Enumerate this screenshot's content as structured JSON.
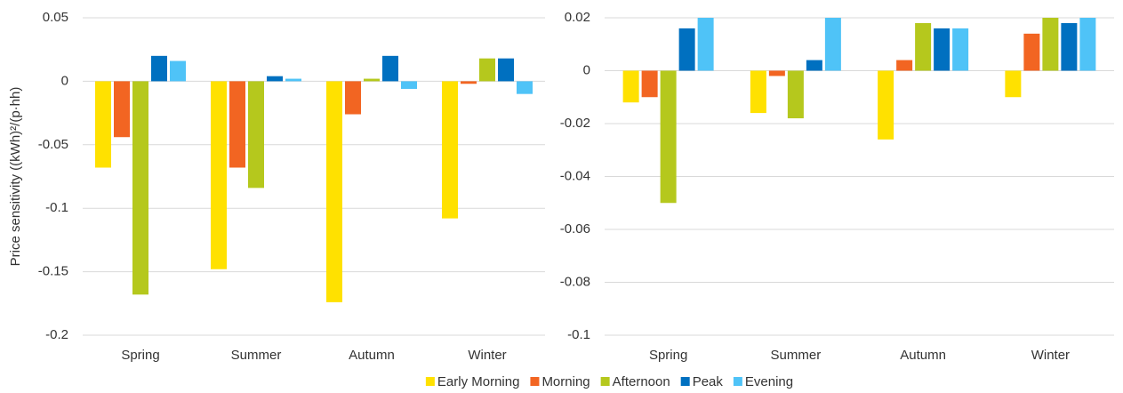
{
  "chart_data": [
    {
      "type": "bar",
      "y_label": "Price sensitivity ((kWh)²/(p·hh)",
      "categories": [
        "Spring",
        "Summer",
        "Autumn",
        "Winter"
      ],
      "series": [
        {
          "name": "Early Morning",
          "color": "#ffe100",
          "values": [
            -0.068,
            -0.148,
            -0.174,
            -0.108
          ]
        },
        {
          "name": "Morning",
          "color": "#f26522",
          "values": [
            -0.044,
            -0.068,
            -0.026,
            -0.002
          ]
        },
        {
          "name": "Afternoon",
          "color": "#b5c81d",
          "values": [
            -0.168,
            -0.084,
            0.002,
            0.018
          ]
        },
        {
          "name": "Peak",
          "color": "#0070c0",
          "values": [
            0.02,
            0.004,
            0.02,
            0.018
          ]
        },
        {
          "name": "Evening",
          "color": "#4fc3f7",
          "values": [
            0.016,
            0.002,
            -0.006,
            -0.01
          ]
        }
      ],
      "ylim": [
        -0.2,
        0.05
      ],
      "yticks": [
        -0.2,
        -0.15,
        -0.1,
        -0.05,
        0,
        0.05
      ],
      "grid": true,
      "legend": "bottom"
    },
    {
      "type": "bar",
      "categories": [
        "Spring",
        "Summer",
        "Autumn",
        "Winter"
      ],
      "series": [
        {
          "color": "#ffe100",
          "values": [
            -0.012,
            -0.016,
            -0.026,
            -0.01
          ]
        },
        {
          "color": "#f26522",
          "values": [
            -0.01,
            -0.002,
            0.004,
            0.014
          ]
        },
        {
          "color": "#b5c81d",
          "values": [
            -0.05,
            -0.018,
            0.018,
            0.02
          ]
        },
        {
          "color": "#0070c0",
          "values": [
            0.016,
            0.004,
            0.016,
            0.018
          ]
        },
        {
          "color": "#4fc3f7",
          "values": [
            0.02,
            0.02,
            0.016,
            0.02
          ]
        }
      ],
      "ylim": [
        -0.1,
        0.02
      ],
      "yticks": [
        -0.1,
        -0.08,
        -0.06,
        -0.04,
        -0.02,
        0,
        0.02
      ],
      "grid": true
    }
  ]
}
